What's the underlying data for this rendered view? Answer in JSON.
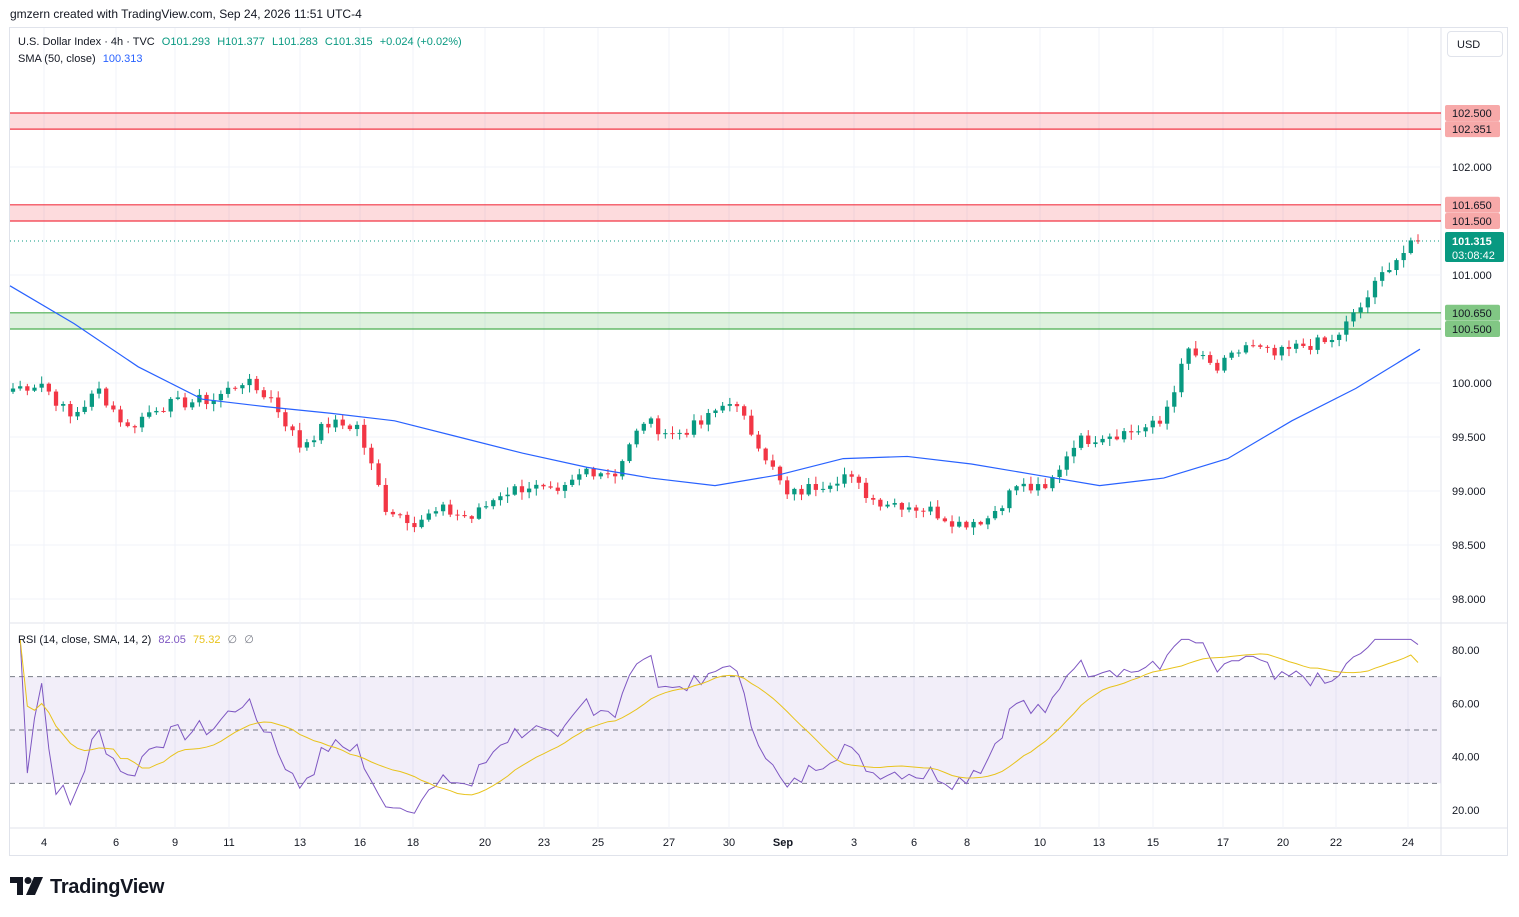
{
  "header": {
    "credit": "gmzern created with TradingView.com, Sep 24, 2026 11:51 UTC-4"
  },
  "legend": {
    "symbol": "U.S. Dollar Index · 4h · TVC",
    "open": "O101.293",
    "high": "H101.377",
    "low": "L101.283",
    "close": "C101.315",
    "change": "+0.024 (+0.02%)",
    "sma_label": "SMA (50, close)",
    "sma_value": "100.313",
    "rsi_label": "RSI (14, close, SMA, 14, 2)",
    "rsi_value": "82.05",
    "rsi_ma_value": "75.32",
    "rsi_na1": "∅",
    "rsi_na2": "∅"
  },
  "currency_button": "USD",
  "brand": "TradingView",
  "colors": {
    "up": "#089981",
    "down": "#f23645",
    "sma": "#2962ff",
    "rsi": "#7e57c2",
    "rsi_ma": "#e8c31c",
    "resistance_zone": "#f23645",
    "support_zone": "#4caf50",
    "last_price": "#089981"
  },
  "chart_data": {
    "type": "candlestick",
    "symbol": "U.S. Dollar Index",
    "interval": "4h",
    "price_axis": {
      "ticks": [
        "98.000",
        "98.500",
        "99.000",
        "99.500",
        "100.000",
        "101.000",
        "102.000"
      ],
      "range": [
        97.85,
        102.75
      ]
    },
    "time_axis": {
      "ticks": [
        "4",
        "6",
        "9",
        "11",
        "13",
        "16",
        "18",
        "20",
        "23",
        "25",
        "27",
        "30",
        "Sep",
        "3",
        "6",
        "8",
        "10",
        "13",
        "15",
        "17",
        "20",
        "22",
        "24"
      ]
    },
    "last_price": {
      "value": "101.315",
      "countdown": "03:08:42"
    },
    "zones": [
      {
        "type": "resistance",
        "top": 102.5,
        "bottom": 102.351,
        "top_label": "102.500",
        "bottom_label": "102.351"
      },
      {
        "type": "resistance",
        "top": 101.65,
        "bottom": 101.5,
        "top_label": "101.650",
        "bottom_label": "101.500"
      },
      {
        "type": "support",
        "top": 100.65,
        "bottom": 100.5,
        "top_label": "100.650",
        "bottom_label": "100.500"
      }
    ],
    "close_path": [
      {
        "x": "4",
        "y": 99.95
      },
      {
        "x": "5",
        "y": 100.0
      },
      {
        "x": "6",
        "y": 99.68
      },
      {
        "x": "7",
        "y": 99.93
      },
      {
        "x": "9",
        "y": 99.58
      },
      {
        "x": "10",
        "y": 99.78
      },
      {
        "x": "11",
        "y": 99.82
      },
      {
        "x": "12",
        "y": 99.85
      },
      {
        "x": "13",
        "y": 100.02
      },
      {
        "x": "14",
        "y": 99.86
      },
      {
        "x": "16",
        "y": 99.42
      },
      {
        "x": "17",
        "y": 99.62
      },
      {
        "x": "18",
        "y": 99.6
      },
      {
        "x": "19",
        "y": 98.85
      },
      {
        "x": "20",
        "y": 98.72
      },
      {
        "x": "21",
        "y": 98.82
      },
      {
        "x": "22",
        "y": 98.75
      },
      {
        "x": "23",
        "y": 98.98
      },
      {
        "x": "25",
        "y": 99.05
      },
      {
        "x": "26",
        "y": 98.95
      },
      {
        "x": "27",
        "y": 99.2
      },
      {
        "x": "28",
        "y": 99.17
      },
      {
        "x": "29",
        "y": 99.65
      },
      {
        "x": "30",
        "y": 99.52
      },
      {
        "x": "31",
        "y": 99.62
      },
      {
        "x": "Sep 1",
        "y": 99.85
      },
      {
        "x": "2",
        "y": 99.45
      },
      {
        "x": "3",
        "y": 98.95
      },
      {
        "x": "4",
        "y": 99.05
      },
      {
        "x": "5",
        "y": 99.15
      },
      {
        "x": "6",
        "y": 98.92
      },
      {
        "x": "7",
        "y": 98.88
      },
      {
        "x": "8",
        "y": 98.82
      },
      {
        "x": "9",
        "y": 98.7
      },
      {
        "x": "10",
        "y": 98.75
      },
      {
        "x": "11",
        "y": 99.05
      },
      {
        "x": "12",
        "y": 99.0
      },
      {
        "x": "13",
        "y": 99.45
      },
      {
        "x": "14",
        "y": 99.52
      },
      {
        "x": "15",
        "y": 99.55
      },
      {
        "x": "16",
        "y": 99.62
      },
      {
        "x": "17",
        "y": 100.3
      },
      {
        "x": "18",
        "y": 100.12
      },
      {
        "x": "19",
        "y": 100.35
      },
      {
        "x": "20",
        "y": 100.25
      },
      {
        "x": "21",
        "y": 100.35
      },
      {
        "x": "22",
        "y": 100.38
      },
      {
        "x": "23",
        "y": 100.7
      },
      {
        "x": "23b",
        "y": 101.1
      },
      {
        "x": "24",
        "y": 101.315
      }
    ],
    "sma_50_path": [
      {
        "x": "3",
        "y": 100.9
      },
      {
        "x": "6",
        "y": 100.55
      },
      {
        "x": "9",
        "y": 100.15
      },
      {
        "x": "11",
        "y": 99.85
      },
      {
        "x": "13",
        "y": 99.78
      },
      {
        "x": "16",
        "y": 99.72
      },
      {
        "x": "18",
        "y": 99.65
      },
      {
        "x": "20",
        "y": 99.5
      },
      {
        "x": "23",
        "y": 99.35
      },
      {
        "x": "25",
        "y": 99.22
      },
      {
        "x": "27",
        "y": 99.12
      },
      {
        "x": "30",
        "y": 99.05
      },
      {
        "x": "Sep",
        "y": 99.15
      },
      {
        "x": "3",
        "y": 99.3
      },
      {
        "x": "6",
        "y": 99.32
      },
      {
        "x": "8",
        "y": 99.25
      },
      {
        "x": "10",
        "y": 99.15
      },
      {
        "x": "13",
        "y": 99.05
      },
      {
        "x": "15",
        "y": 99.12
      },
      {
        "x": "17",
        "y": 99.3
      },
      {
        "x": "20",
        "y": 99.65
      },
      {
        "x": "22",
        "y": 99.95
      },
      {
        "x": "24",
        "y": 100.313
      }
    ],
    "rsi": {
      "ylim": [
        15,
        85
      ],
      "ticks": [
        "20.00",
        "40.00",
        "60.00",
        "80.00"
      ],
      "overbought": 70,
      "middle": 50,
      "oversold": 30,
      "value": 82.05,
      "ma_value": 75.32
    }
  }
}
